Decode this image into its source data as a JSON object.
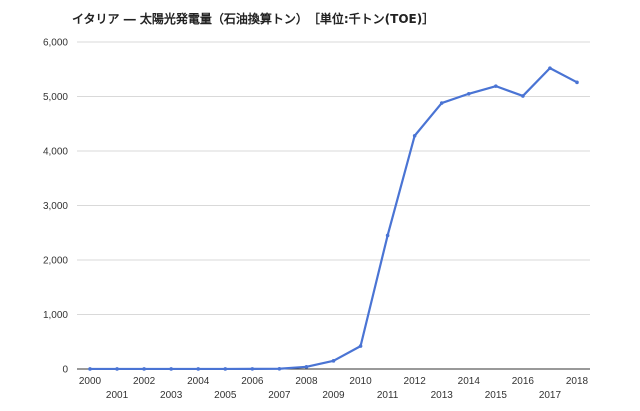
{
  "chart_data": {
    "type": "line",
    "title": "イタリア ― 太陽光発電量（石油換算トン）　［単位:千トン(TOE)］",
    "xlabel": "",
    "ylabel": "",
    "x": [
      2000,
      2001,
      2002,
      2003,
      2004,
      2005,
      2006,
      2007,
      2008,
      2009,
      2010,
      2011,
      2012,
      2013,
      2014,
      2015,
      2016,
      2017,
      2018
    ],
    "series": [
      {
        "values": [
          1,
          1,
          1,
          1,
          1,
          1,
          2,
          4,
          40,
          150,
          420,
          2450,
          4280,
          4880,
          5050,
          5190,
          5010,
          5520,
          5260
        ],
        "color": "#4a74d4"
      }
    ],
    "ylim": [
      0,
      6000
    ],
    "yticks": [
      0,
      1000,
      2000,
      3000,
      4000,
      5000,
      6000
    ],
    "ytick_labels": [
      "0",
      "1,000",
      "2,000",
      "3,000",
      "4,000",
      "5,000",
      "6,000"
    ],
    "xtick_labels": [
      "2000",
      "2001",
      "2002",
      "2003",
      "2004",
      "2005",
      "2006",
      "2007",
      "2008",
      "2009",
      "2010",
      "2011",
      "2012",
      "2013",
      "2014",
      "2015",
      "2016",
      "2017",
      "2018"
    ],
    "grid": true,
    "legend": "none"
  }
}
